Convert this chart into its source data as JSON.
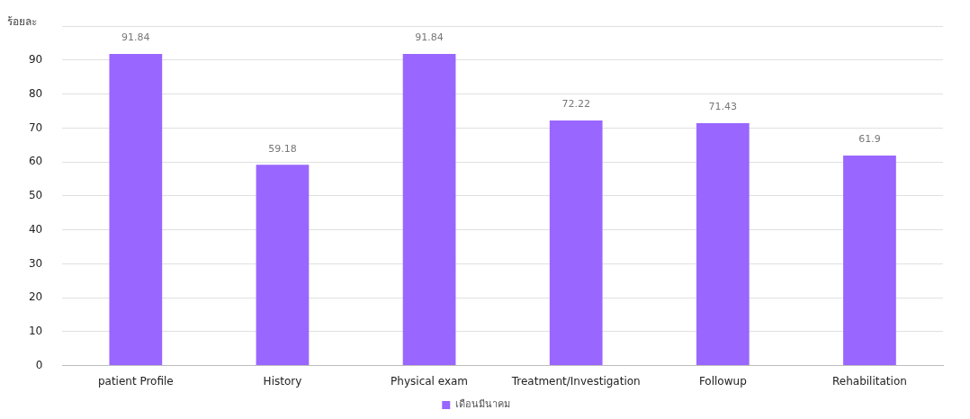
{
  "chart_data": {
    "type": "bar",
    "ylabel": "ร้อยละ",
    "categories": [
      "patient Profile",
      "History",
      "Physical exam",
      "Treatment/Investigation",
      "Followup",
      "Rehabilitation"
    ],
    "series": [
      {
        "name": "เดือนมีนาคม",
        "color": "#9966ff",
        "values": [
          91.84,
          59.18,
          91.84,
          72.22,
          71.43,
          61.9
        ]
      }
    ],
    "ylim": [
      0,
      100
    ],
    "yticks": [
      0,
      10,
      20,
      30,
      40,
      50,
      60,
      70,
      80,
      90,
      {
        "value": 100,
        "label": null
      }
    ],
    "grid": "y",
    "legend": "bottom",
    "data_labels": true
  }
}
